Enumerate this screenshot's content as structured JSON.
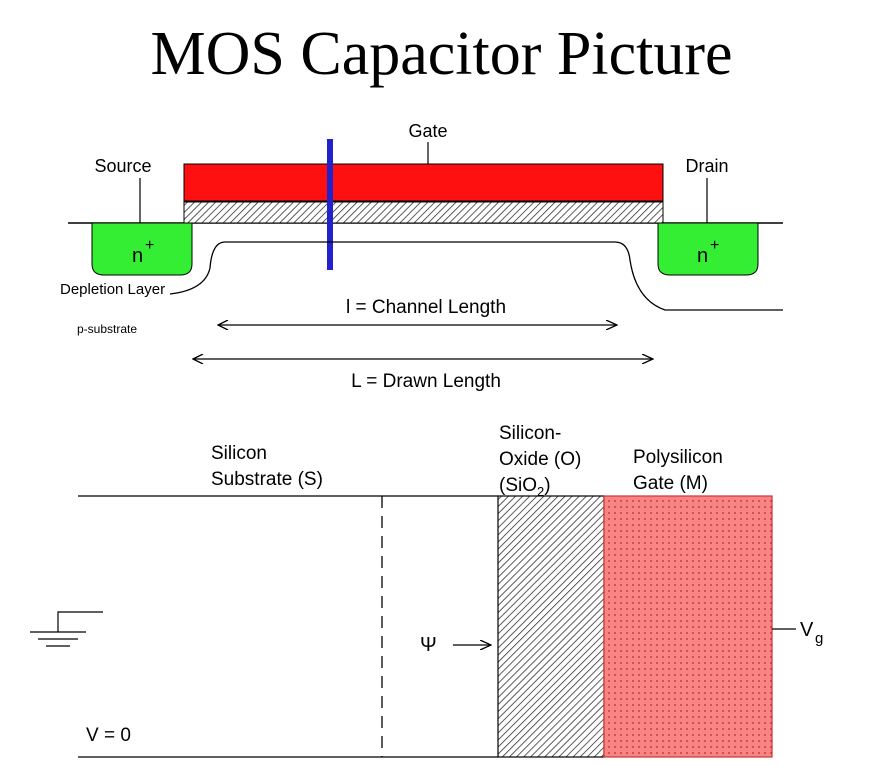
{
  "title": "MOS Capacitor Picture",
  "top_diagram": {
    "gate": "Gate",
    "source": "Source",
    "drain": "Drain",
    "n_plus_left": "n",
    "n_plus_right": "n",
    "plus_sign": "+",
    "depletion_layer": "Depletion Layer",
    "p_substrate": "p-substrate",
    "channel_length": "l = Channel Length",
    "drawn_length": "L = Drawn Length"
  },
  "bottom_diagram": {
    "silicon_line1": "Silicon",
    "silicon_line2": "Substrate (S)",
    "oxide_line1": "Silicon-",
    "oxide_line2": "Oxide (O)",
    "oxide_formula_pre": "(SiO",
    "oxide_formula_sub": "2",
    "oxide_formula_post": ")",
    "poly_line1": "Polysilicon",
    "poly_line2": "Gate (M)",
    "psi": "Ψ",
    "vg_main": "V",
    "vg_sub": "g",
    "v_zero": "V = 0"
  },
  "colors": {
    "gate_red": "#ff1010",
    "n_green": "#33ee33",
    "marker_blue": "#2222cc",
    "poly_pink": "#f98484"
  }
}
